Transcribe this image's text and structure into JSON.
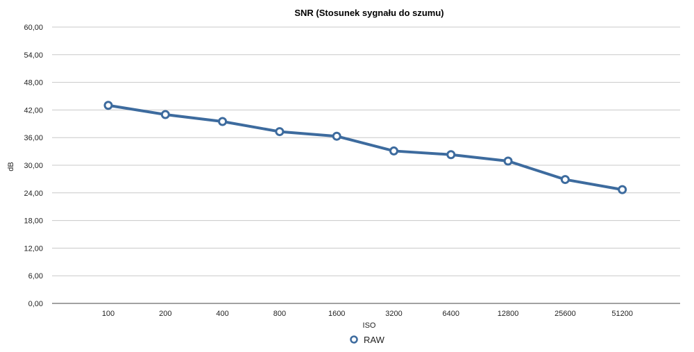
{
  "chart_data": {
    "type": "line",
    "title": "SNR (Stosunek sygnału do szumu)",
    "xlabel": "ISO",
    "ylabel": "dB",
    "categories": [
      "100",
      "200",
      "400",
      "800",
      "1600",
      "3200",
      "6400",
      "12800",
      "25600",
      "51200"
    ],
    "y_ticks": [
      "0,00",
      "6,00",
      "12,00",
      "18,00",
      "24,00",
      "30,00",
      "36,00",
      "42,00",
      "48,00",
      "54,00",
      "60,00"
    ],
    "ylim": [
      0,
      60
    ],
    "grid": true,
    "legend_position": "bottom",
    "series": [
      {
        "name": "RAW",
        "color": "#3d6b9e",
        "values": [
          43.0,
          41.0,
          39.5,
          37.3,
          36.3,
          33.1,
          32.3,
          30.9,
          26.9,
          24.7
        ]
      }
    ]
  }
}
